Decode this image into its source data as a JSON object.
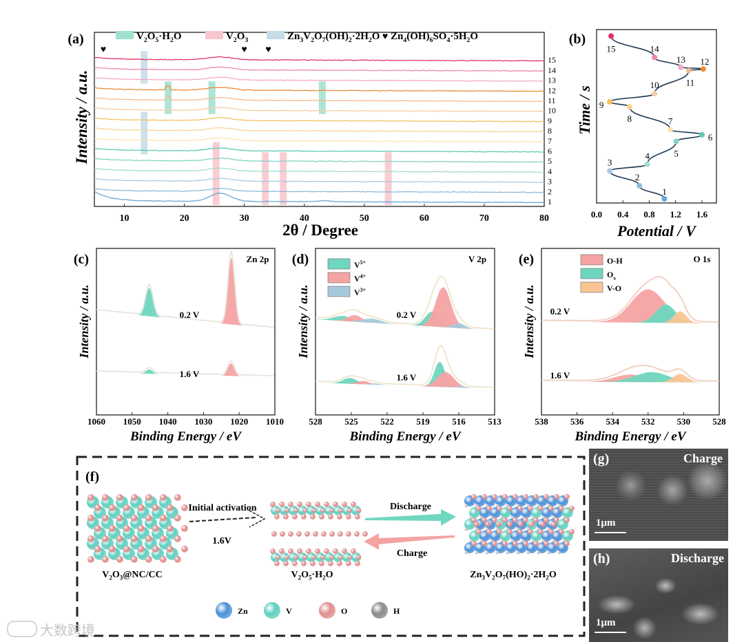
{
  "chart_data": [
    {
      "panel": "(a)",
      "type": "line",
      "xlabel": "2θ / Degree",
      "ylabel": "Intensity / a.u.",
      "xlim": [
        5,
        80
      ],
      "xticks": [
        "10",
        "20",
        "30",
        "40",
        "50",
        "60",
        "70",
        "80"
      ],
      "legend": [
        {
          "label": "V2O5·H2O",
          "color": "#9fe0d0"
        },
        {
          "label": "V2O3",
          "color": "#f7c6cc"
        },
        {
          "label": "Zn3V2O7(OH)2·2H2O",
          "color": "#c6dce8"
        },
        {
          "label": "Zn4(OH)6SO4·5H2O",
          "marker": "heart"
        }
      ],
      "series_labels": [
        "1",
        "2",
        "3",
        "4",
        "5",
        "6",
        "7",
        "8",
        "9",
        "10",
        "11",
        "12",
        "13",
        "14",
        "15"
      ],
      "series_colors": [
        "#6aa6d6",
        "#8dbbdc",
        "#a9c9e0",
        "#a5dcd2",
        "#84d4c6",
        "#5fcab6",
        "#fbe3b0",
        "#f8d38f",
        "#f5c25e",
        "#f8cba0",
        "#f6bb8e",
        "#ee8a32",
        "#f5a9c3",
        "#ef88ad",
        "#df3462"
      ],
      "hump_center": 26,
      "highlight_bands": [
        {
          "phase": "V2O5·H2O",
          "two_theta": 17.3,
          "curves": [
            10,
            12
          ]
        },
        {
          "phase": "V2O5·H2O",
          "two_theta": 24.6,
          "curves": [
            10,
            12
          ]
        },
        {
          "phase": "V2O5·H2O",
          "two_theta": 43.0,
          "curves": [
            10,
            12
          ]
        },
        {
          "phase": "V2O3",
          "two_theta": 25.3,
          "curves": [
            1,
            6
          ]
        },
        {
          "phase": "V2O3",
          "two_theta": 33.5,
          "curves": [
            1,
            5
          ]
        },
        {
          "phase": "V2O3",
          "two_theta": 36.5,
          "curves": [
            1,
            5
          ]
        },
        {
          "phase": "V2O3",
          "two_theta": 54.0,
          "curves": [
            1,
            5
          ]
        },
        {
          "phase": "Zn3V2O7(OH)2·2H2O",
          "two_theta": 13.3,
          "curves": [
            13,
            15
          ]
        },
        {
          "phase": "Zn3V2O7(OH)2·2H2O",
          "two_theta": 13.3,
          "curves": [
            6,
            9
          ]
        }
      ],
      "heart_markers": [
        6.5,
        30.0,
        34.0
      ]
    },
    {
      "panel": "(b)",
      "type": "line",
      "xlabel": "Potential / V",
      "ylabel": "Time / s",
      "xlim": [
        0.0,
        1.82
      ],
      "xticks": [
        "0.0",
        "0.4",
        "0.8",
        "1.2",
        "1.6"
      ],
      "points": [
        {
          "label": "1",
          "potential": 1.03,
          "time": 0.0
        },
        {
          "label": "2",
          "potential": 0.65,
          "time": 0.08
        },
        {
          "label": "3",
          "potential": 0.2,
          "time": 0.17
        },
        {
          "label": "4",
          "potential": 0.77,
          "time": 0.21
        },
        {
          "label": "5",
          "potential": 1.21,
          "time": 0.35
        },
        {
          "label": "6",
          "potential": 1.6,
          "time": 0.39
        },
        {
          "label": "7",
          "potential": 1.12,
          "time": 0.42
        },
        {
          "label": "8",
          "potential": 0.5,
          "time": 0.56
        },
        {
          "label": "9",
          "potential": 0.2,
          "time": 0.59
        },
        {
          "label": "10",
          "potential": 0.88,
          "time": 0.64
        },
        {
          "label": "11",
          "potential": 1.4,
          "time": 0.78
        },
        {
          "label": "12",
          "potential": 1.62,
          "time": 0.79
        },
        {
          "label": "13",
          "potential": 1.28,
          "time": 0.8
        },
        {
          "label": "14",
          "potential": 0.88,
          "time": 0.86
        },
        {
          "label": "15",
          "potential": 0.22,
          "time": 0.99
        }
      ]
    },
    {
      "panel": "(c)",
      "type": "area",
      "title": "Zn 2p",
      "xlabel": "Binding Energy / eV",
      "ylabel": "Intensity / a.u.",
      "xlim": [
        1060,
        1010
      ],
      "ylim": [
        0,
        100
      ],
      "xticks": [
        "1060",
        "1050",
        "1040",
        "1030",
        "1020",
        "1010"
      ],
      "spectra": [
        {
          "label": "0.2 V",
          "baseline": [
            62.4,
            51.7
          ],
          "peaks": [
            {
              "center": 1045.2,
              "height": 17,
              "sigma": 1.0,
              "color": "#6fd6bf"
            },
            {
              "center": 1022.2,
              "height": 40,
              "sigma": 0.9,
              "color": "#f5a3a3"
            }
          ]
        },
        {
          "label": "1.6 V",
          "baseline": [
            25.6,
            22.7
          ],
          "peaks": [
            {
              "center": 1045.2,
              "height": 2.6,
              "sigma": 0.9,
              "color": "#6fd6bf"
            },
            {
              "center": 1022.3,
              "height": 7.5,
              "sigma": 0.9,
              "color": "#f5a3a3"
            }
          ]
        }
      ]
    },
    {
      "panel": "(d)",
      "type": "area",
      "title": "V 2p",
      "xlabel": "Binding Energy / eV",
      "ylabel": "Intensity / a.u.",
      "xlim": [
        528,
        513
      ],
      "ylim": [
        0,
        100
      ],
      "xticks": [
        "528",
        "525",
        "522",
        "519",
        "516",
        "513"
      ],
      "legend": [
        {
          "label": "V5+",
          "base": "V",
          "sup": "5+",
          "color": "#6fd6bf"
        },
        {
          "label": "V4+",
          "base": "V",
          "sup": "4+",
          "color": "#f5a3a3"
        },
        {
          "label": "V3+",
          "base": "V",
          "sup": "3+",
          "color": "#a6c8dc"
        }
      ],
      "spectra": [
        {
          "label": "0.2 V",
          "baseline": [
            57.4,
            50.8
          ],
          "peaks": [
            {
              "center": 525.7,
              "height": 3,
              "sigma": 0.8,
              "color": "#6fd6bf"
            },
            {
              "center": 524.7,
              "height": 4,
              "sigma": 0.6,
              "color": "#f5a3a3"
            },
            {
              "center": 523.3,
              "height": 2.5,
              "sigma": 0.8,
              "color": "#a6c8dc"
            },
            {
              "center": 518.2,
              "height": 9,
              "sigma": 0.6,
              "color": "#6fd6bf"
            },
            {
              "center": 517.3,
              "height": 24,
              "sigma": 0.65,
              "color": "#f5a3a3"
            },
            {
              "center": 516.0,
              "height": 3,
              "sigma": 0.5,
              "color": "#a6c8dc"
            }
          ]
        },
        {
          "label": "1.6 V",
          "baseline": [
            19.4,
            15.7
          ],
          "peaks": [
            {
              "center": 525.1,
              "height": 3.5,
              "sigma": 0.6,
              "color": "#6fd6bf"
            },
            {
              "center": 524.0,
              "height": 2,
              "sigma": 0.5,
              "color": "#f5a3a3"
            },
            {
              "center": 523.0,
              "height": 0.8,
              "sigma": 0.4,
              "color": "#a6c8dc"
            },
            {
              "center": 517.6,
              "height": 15,
              "sigma": 0.45,
              "color": "#6fd6bf"
            },
            {
              "center": 517.1,
              "height": 9,
              "sigma": 0.7,
              "color": "#f5a3a3"
            },
            {
              "center": 515.8,
              "height": 1,
              "sigma": 0.4,
              "color": "#a6c8dc"
            }
          ]
        }
      ]
    },
    {
      "panel": "(e)",
      "type": "area",
      "title": "O 1s",
      "xlabel": "Binding Energy / eV",
      "ylabel": "Intensity / a.u.",
      "xlim": [
        538,
        528
      ],
      "ylim": [
        0,
        100
      ],
      "xticks": [
        "538",
        "536",
        "534",
        "532",
        "530",
        "528"
      ],
      "legend": [
        {
          "label": "O-H",
          "base": "O-H",
          "sup": "",
          "color": "#f5a3a3"
        },
        {
          "label": "Ov",
          "base": "O",
          "sub": "v",
          "color": "#6fd6bf"
        },
        {
          "label": "V-O",
          "base": "V-O",
          "sup": "",
          "color": "#f9c594"
        }
      ],
      "spectra": [
        {
          "label": "0.2 V",
          "baseline": [
            56,
            55
          ],
          "peaks": [
            {
              "center": 532.0,
              "height": 20,
              "sigma": 0.95,
              "color": "#f5a3a3"
            },
            {
              "center": 531.0,
              "height": 11,
              "sigma": 0.55,
              "color": "#6fd6bf"
            },
            {
              "center": 530.2,
              "height": 7,
              "sigma": 0.35,
              "color": "#f9c594"
            }
          ]
        },
        {
          "label": "1.6 V",
          "baseline": [
            20,
            19.5
          ],
          "peaks": [
            {
              "center": 533.0,
              "height": 4.5,
              "sigma": 0.9,
              "color": "#f5a3a3"
            },
            {
              "center": 531.8,
              "height": 6,
              "sigma": 0.95,
              "color": "#6fd6bf"
            },
            {
              "center": 530.2,
              "height": 5,
              "sigma": 0.4,
              "color": "#f9c594"
            }
          ]
        }
      ]
    }
  ],
  "panel_f": {
    "label": "(f)",
    "activation_top": "Initial activation",
    "activation_bottom": "1.6V",
    "discharge": "Discharge",
    "charge": "Charge",
    "structures": [
      "V2O3@NC/CC",
      "V2O5·H2O",
      "Zn3V2O7(HO)2·2H2O"
    ],
    "atom_legend": [
      {
        "label": "Zn",
        "color": "#4a90d9"
      },
      {
        "label": "V",
        "color": "#5fd0c0"
      },
      {
        "label": "O",
        "color": "#e08e8e"
      },
      {
        "label": "H",
        "color": "#8a8a8a"
      }
    ]
  },
  "panel_g": {
    "label": "(g)",
    "title": "Charge",
    "scale": "1μm"
  },
  "panel_h": {
    "label": "(h)",
    "title": "Discharge",
    "scale": "1μm"
  },
  "watermark": "大数跨境"
}
